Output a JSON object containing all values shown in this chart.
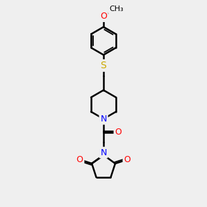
{
  "bg_color": "#efefef",
  "line_color": "#000000",
  "bond_width": 1.8,
  "atom_colors": {
    "N": "#0000FF",
    "O": "#FF0000",
    "S": "#CCAA00",
    "C": "#000000"
  },
  "font_size_atom": 9,
  "xlim": [
    3.8,
    7.2
  ],
  "ylim": [
    0.3,
    10.2
  ]
}
